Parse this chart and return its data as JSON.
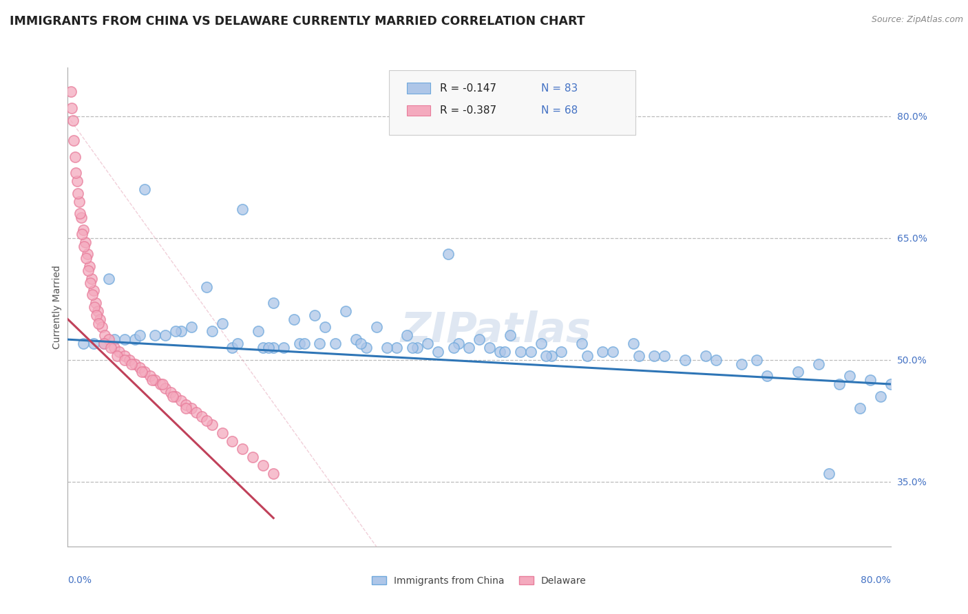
{
  "title": "IMMIGRANTS FROM CHINA VS DELAWARE CURRENTLY MARRIED CORRELATION CHART",
  "source_text": "Source: ZipAtlas.com",
  "ylabel": "Currently Married",
  "right_yticks": [
    35.0,
    50.0,
    65.0,
    80.0
  ],
  "right_ytick_labels": [
    "35.0%",
    "50.0%",
    "65.0%",
    "80.0%"
  ],
  "xmin": 0.0,
  "xmax": 80.0,
  "ymin": 27.0,
  "ymax": 86.0,
  "legend_r1": "-0.147",
  "legend_n1": "83",
  "legend_r2": "-0.387",
  "legend_n2": "68",
  "color_blue_fill": "#AEC6E8",
  "color_blue_edge": "#6FA8DC",
  "color_pink_fill": "#F4AABE",
  "color_pink_edge": "#E87D9B",
  "color_blue_line": "#2E75B6",
  "color_pink_line": "#C0415A",
  "color_diag": "#E8B0C0",
  "watermark": "ZIPatlas",
  "blue_trend_x": [
    0.0,
    80.0
  ],
  "blue_trend_y": [
    52.5,
    47.0
  ],
  "pink_trend_x": [
    0.0,
    20.0
  ],
  "pink_trend_y": [
    55.0,
    30.5
  ],
  "diag_line_x": [
    0.0,
    30.0
  ],
  "diag_line_y": [
    80.0,
    27.0
  ],
  "blue_x": [
    7.5,
    17.0,
    37.0,
    4.0,
    13.5,
    20.0,
    24.0,
    27.0,
    30.0,
    22.0,
    15.0,
    18.5,
    25.0,
    33.0,
    40.0,
    43.0,
    46.0,
    50.0,
    55.0,
    28.0,
    35.0,
    38.0,
    20.0,
    22.5,
    16.0,
    19.0,
    26.0,
    29.0,
    32.0,
    36.0,
    42.0,
    44.0,
    48.0,
    52.0,
    58.0,
    62.0,
    67.0,
    73.0,
    78.0,
    12.0,
    14.0,
    11.0,
    8.5,
    9.5,
    6.5,
    5.5,
    3.5,
    2.5,
    1.5,
    10.5,
    21.0,
    23.0,
    31.0,
    34.0,
    39.0,
    41.0,
    45.0,
    47.0,
    53.0,
    57.0,
    63.0,
    68.0,
    75.0,
    4.5,
    7.0,
    16.5,
    19.5,
    24.5,
    28.5,
    33.5,
    37.5,
    42.5,
    46.5,
    50.5,
    55.5,
    60.0,
    65.5,
    71.0,
    76.0,
    80.0,
    79.0,
    77.0,
    74.0
  ],
  "blue_y": [
    71.0,
    68.5,
    63.0,
    60.0,
    59.0,
    57.0,
    55.5,
    56.0,
    54.0,
    55.0,
    54.5,
    53.5,
    54.0,
    53.0,
    52.5,
    53.0,
    52.0,
    52.0,
    52.0,
    52.5,
    52.0,
    52.0,
    51.5,
    52.0,
    51.5,
    51.5,
    52.0,
    51.5,
    51.5,
    51.0,
    51.0,
    51.0,
    51.0,
    51.0,
    50.5,
    50.5,
    50.0,
    49.5,
    47.5,
    54.0,
    53.5,
    53.5,
    53.0,
    53.0,
    52.5,
    52.5,
    52.0,
    52.0,
    52.0,
    53.5,
    51.5,
    52.0,
    51.5,
    51.5,
    51.5,
    51.5,
    51.0,
    50.5,
    51.0,
    50.5,
    50.0,
    48.0,
    47.0,
    52.5,
    53.0,
    52.0,
    51.5,
    52.0,
    52.0,
    51.5,
    51.5,
    51.0,
    50.5,
    50.5,
    50.5,
    50.0,
    49.5,
    48.5,
    48.0,
    47.0,
    45.5,
    44.0,
    36.0
  ],
  "pink_x": [
    0.3,
    0.5,
    0.7,
    0.9,
    1.1,
    1.3,
    1.5,
    1.7,
    1.9,
    2.1,
    2.3,
    2.5,
    2.7,
    2.9,
    3.1,
    3.3,
    3.6,
    4.0,
    4.5,
    5.0,
    5.5,
    6.0,
    6.5,
    7.0,
    7.5,
    8.0,
    8.5,
    9.0,
    9.5,
    10.0,
    10.5,
    11.0,
    11.5,
    12.0,
    12.5,
    13.0,
    14.0,
    15.0,
    16.0,
    17.0,
    18.0,
    19.0,
    20.0,
    0.4,
    0.6,
    0.8,
    1.0,
    1.2,
    1.4,
    1.6,
    1.8,
    2.0,
    2.2,
    2.4,
    2.6,
    2.8,
    3.0,
    3.5,
    4.2,
    4.8,
    5.5,
    6.2,
    7.2,
    8.2,
    9.2,
    10.2,
    11.5,
    13.5
  ],
  "pink_y": [
    83.0,
    79.5,
    75.0,
    72.0,
    69.5,
    67.5,
    66.0,
    64.5,
    63.0,
    61.5,
    60.0,
    58.5,
    57.0,
    56.0,
    55.0,
    54.0,
    53.0,
    52.5,
    51.5,
    51.0,
    50.5,
    50.0,
    49.5,
    49.0,
    48.5,
    48.0,
    47.5,
    47.0,
    46.5,
    46.0,
    45.5,
    45.0,
    44.5,
    44.0,
    43.5,
    43.0,
    42.0,
    41.0,
    40.0,
    39.0,
    38.0,
    37.0,
    36.0,
    81.0,
    77.0,
    73.0,
    70.5,
    68.0,
    65.5,
    64.0,
    62.5,
    61.0,
    59.5,
    58.0,
    56.5,
    55.5,
    54.5,
    52.0,
    51.5,
    50.5,
    50.0,
    49.5,
    48.5,
    47.5,
    47.0,
    45.5,
    44.0,
    42.5
  ]
}
